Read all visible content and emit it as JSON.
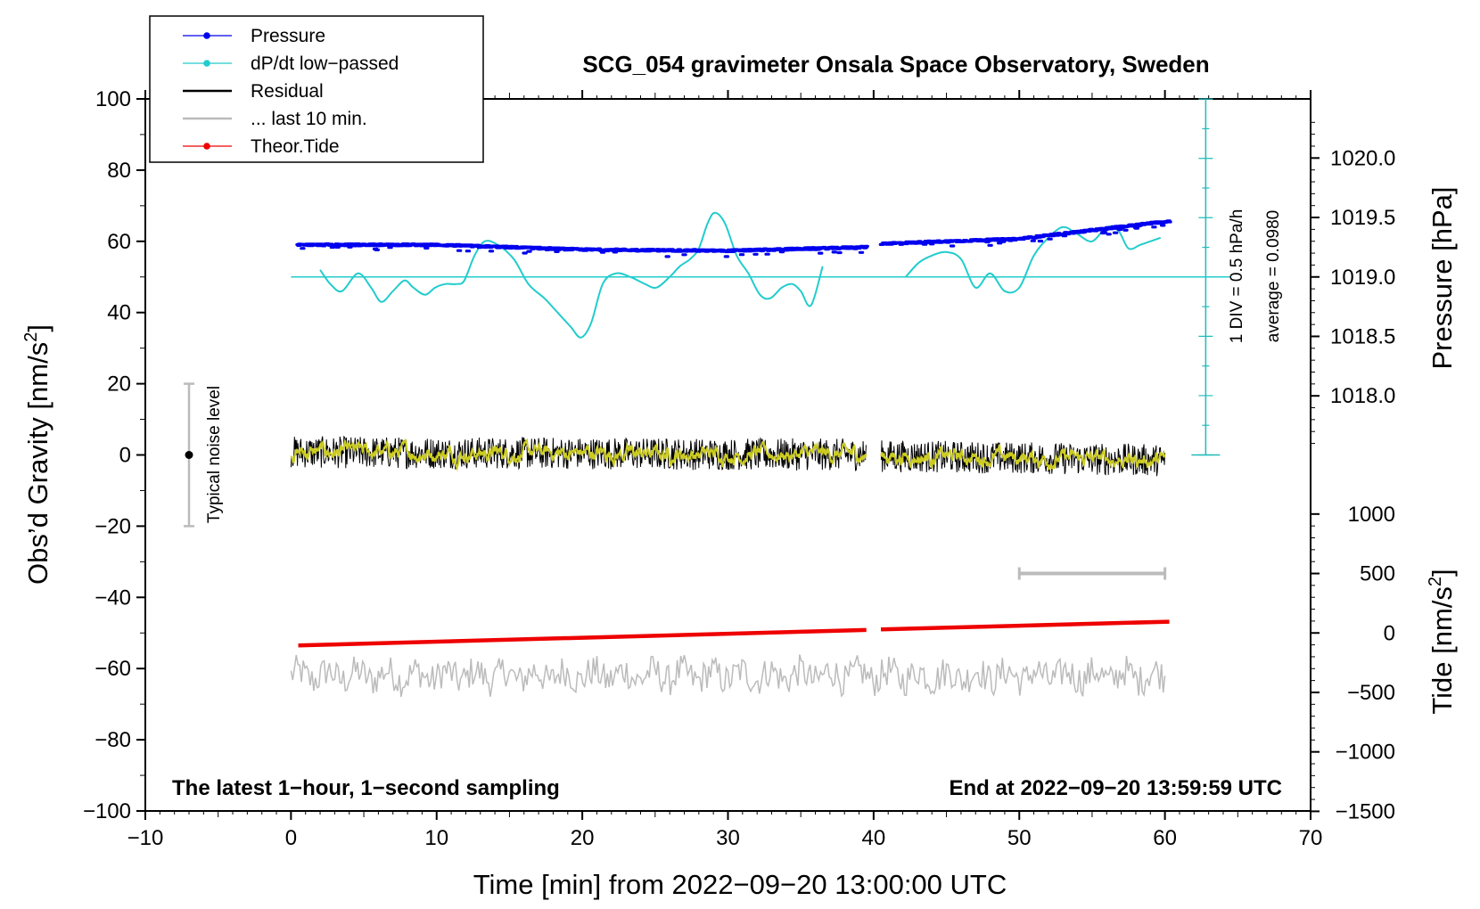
{
  "chart_data": {
    "type": "line",
    "title": "SCG_054 gravimeter Onsala Space Observatory, Sweden",
    "xlabel": "Time [min] from 2022−09−20 13:00:00 UTC",
    "ylabel_left": "Obs’d Gravity [nm/s",
    "ylabel_left_sup": "2",
    "ylabel_left_end": "]",
    "ylabel_right_top": "Pressure [hPa]",
    "ylabel_right_bottom": "Tide [nm/s",
    "ylabel_right_bottom_sup": "2",
    "ylabel_right_bottom_end": "]",
    "xlim": [
      -10,
      70
    ],
    "ylim_left": [
      -100,
      100
    ],
    "x_ticks": [
      "−10",
      "0",
      "10",
      "20",
      "30",
      "40",
      "50",
      "60",
      "70"
    ],
    "y_left_ticks": [
      "100",
      "80",
      "60",
      "40",
      "20",
      "0",
      "−20",
      "−40",
      "−60",
      "−80",
      "−100"
    ],
    "pressure_axis": {
      "range": [
        1017.5,
        1020.5
      ],
      "ticks": [
        "1020.0",
        "1019.5",
        "1019.0",
        "1018.5",
        "1018.0"
      ]
    },
    "tide_axis": {
      "range": [
        -1500,
        1000
      ],
      "ticks": [
        "1000",
        "500",
        "0",
        "−500",
        "−1000",
        "−1500"
      ]
    },
    "legend": [
      {
        "label": "Pressure",
        "color": "#0000ee",
        "marker": true
      },
      {
        "label": "dP/dt low−passed",
        "color": "#22cccc",
        "marker": true
      },
      {
        "label": "Residual",
        "color": "#000000",
        "marker": false
      },
      {
        "label": "... last 10 min.",
        "color": "#bbbbbb",
        "marker": false
      },
      {
        "label": "Theor.Tide",
        "color": "#ee0000",
        "marker": true
      }
    ],
    "annotations": {
      "bottom_left": "The latest 1−hour, 1−second sampling",
      "bottom_right": "End at 2022−09−20 13:59:59 UTC",
      "noise": "Typical noise level",
      "scale_div": "1 DIV = 0.5 hPa/h",
      "scale_avg": "average = 0.0980"
    },
    "noise_level": {
      "x": -7,
      "y": 0,
      "range": [
        -20,
        20
      ]
    },
    "data_gap_minutes": [
      39.5,
      40.5
    ],
    "series": [
      {
        "name": "Pressure",
        "unit": "hPa",
        "x": [
          0.5,
          10,
          20,
          30,
          39.5,
          40.5,
          50,
          60.3
        ],
        "y": [
          1019.27,
          1019.27,
          1019.23,
          1019.22,
          1019.25,
          1019.28,
          1019.32,
          1019.47
        ]
      },
      {
        "name": "dP/dt low−passed",
        "unit": "nm/s2 plot units",
        "x": [
          2.0,
          2.7,
          3.5,
          4.6,
          5.5,
          6.2,
          7.0,
          7.8,
          8.4,
          9.2,
          9.9,
          10.6,
          11.4,
          11.9,
          12.6,
          13.3,
          14.2,
          15.3,
          16.3,
          17.4,
          18.3,
          19.2,
          19.9,
          20.6,
          21.4,
          22.3,
          23.3,
          24.3,
          25.1,
          26.0,
          26.7,
          27.4,
          28.0,
          28.6,
          29.1,
          29.8,
          30.6,
          31.4,
          32.2,
          32.9,
          33.7,
          34.4,
          35.0,
          35.7,
          36.5,
          42.2,
          43.1,
          44.0,
          45.0,
          46.0,
          47.0,
          48.0,
          49.0,
          50.0,
          51.0,
          52.0,
          53.0,
          54.0,
          55.0,
          56.0,
          56.8,
          57.5,
          58.3,
          59.0,
          59.7
        ],
        "y": [
          52,
          48,
          46,
          51,
          47,
          43,
          46,
          49,
          47,
          45,
          47,
          48,
          48,
          49,
          56,
          60,
          59,
          55,
          48,
          44,
          40,
          36,
          33,
          37,
          48,
          51,
          50,
          48,
          47,
          50,
          53,
          55,
          58,
          65,
          68,
          65,
          56,
          51,
          45,
          44,
          47,
          48,
          46,
          42,
          53,
          50,
          54,
          56,
          57,
          55,
          47,
          51,
          46,
          47,
          56,
          61,
          64,
          62,
          60,
          64,
          63,
          58,
          59,
          60,
          61
        ]
      },
      {
        "name": "Residual",
        "unit": "nm/s2",
        "x": [
          0,
          10,
          20,
          30,
          39.5,
          40.5,
          50,
          60
        ],
        "y": [
          0.8,
          0.6,
          0.5,
          0.2,
          0.1,
          -0.3,
          -0.8,
          -1.5
        ]
      },
      {
        "name": "... last 10 min.",
        "unit": "nm/s2 plot units",
        "x": [
          0,
          60
        ],
        "y": [
          -62,
          -62
        ]
      },
      {
        "name": "Theor.Tide",
        "unit": "nm/s2",
        "x": [
          0.5,
          39.5,
          40.5,
          60.3
        ],
        "y": [
          -105,
          25,
          30,
          95
        ]
      }
    ]
  }
}
